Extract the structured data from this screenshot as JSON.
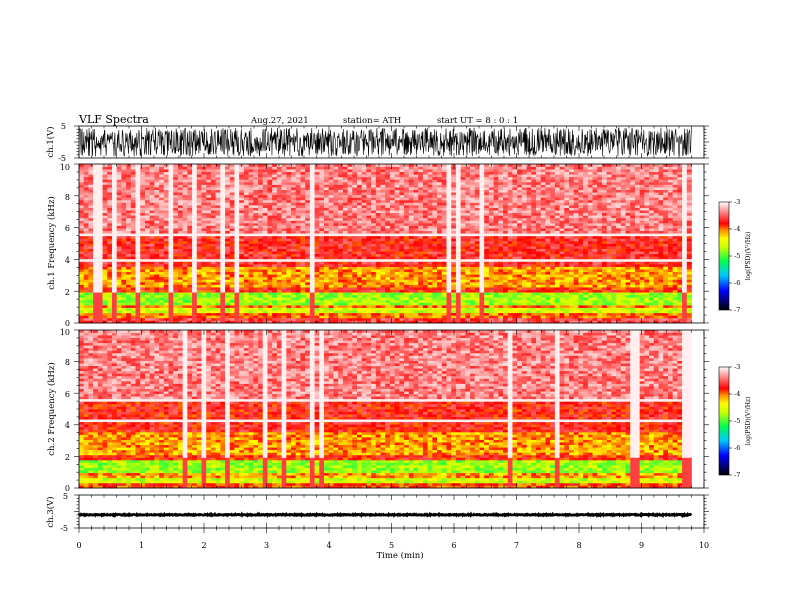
{
  "header": {
    "title": "VLF  Spectra",
    "date": "Aug.27, 2021",
    "station": "station= ATH",
    "start": "start  UT  =   8  : 0  : 1"
  },
  "chart_data": [
    {
      "type": "line",
      "name": "ch1-waveform",
      "ylabel": "ch.1(V)",
      "ylim": [
        -5,
        5
      ],
      "y_tick_labels": [
        "5",
        "-5"
      ],
      "xlim": [
        0,
        10
      ],
      "x_data_end": 9.8,
      "signal": "dense broadband noise filling roughly -4.5 to 4.5 V"
    },
    {
      "type": "heatmap",
      "name": "ch1-spectrogram",
      "ylabel": "ch.1  Frequency  (kHz)",
      "ylim": [
        0,
        10
      ],
      "y_tick_labels": [
        "0",
        "2",
        "4",
        "6",
        "8",
        "10"
      ],
      "xlim": [
        0,
        10
      ],
      "x_data_end": 9.8,
      "colorbar": {
        "label": "log(PSD)(V²/Hz)",
        "range": [
          -7,
          -3
        ],
        "tick_labels": [
          "-3",
          "-4",
          "-5",
          "-6",
          "-7"
        ]
      },
      "bands": [
        {
          "f_range": [
            5.5,
            10
          ],
          "level": -3.4
        },
        {
          "f_range": [
            3.6,
            5.5
          ],
          "level": -3.7
        },
        {
          "f_range": [
            2.3,
            3.6
          ],
          "level": -4.1
        },
        {
          "f_range": [
            1.9,
            2.3
          ],
          "level": -3.8
        },
        {
          "f_range": [
            1.2,
            1.9
          ],
          "level": -4.8
        },
        {
          "f_range": [
            0.9,
            1.2
          ],
          "level": -4.0
        },
        {
          "f_range": [
            0.6,
            0.9
          ],
          "level": -4.6
        },
        {
          "f_range": [
            0.3,
            0.6
          ],
          "level": -4.0
        },
        {
          "f_range": [
            0.0,
            0.3
          ],
          "level": -3.6
        }
      ],
      "white_gap_freqs": [
        5.6,
        4.0
      ]
    },
    {
      "type": "heatmap",
      "name": "ch2-spectrogram",
      "ylabel": "ch.2  Frequency  (kHz)",
      "ylim": [
        0,
        10
      ],
      "y_tick_labels": [
        "0",
        "2",
        "4",
        "6",
        "8",
        "10"
      ],
      "xlim": [
        0,
        10
      ],
      "x_data_end": 9.8,
      "colorbar": {
        "label": "log(PSD)(V²/Hz)",
        "range": [
          -7,
          -3
        ],
        "tick_labels": [
          "-3",
          "-4",
          "-5",
          "-6",
          "-7"
        ]
      },
      "bands": [
        {
          "f_range": [
            5.6,
            10
          ],
          "level": -3.4
        },
        {
          "f_range": [
            3.6,
            5.6
          ],
          "level": -3.75
        },
        {
          "f_range": [
            2.1,
            3.6
          ],
          "level": -4.1
        },
        {
          "f_range": [
            1.7,
            2.1
          ],
          "level": -3.8
        },
        {
          "f_range": [
            1.0,
            1.7
          ],
          "level": -4.8
        },
        {
          "f_range": [
            0.7,
            1.0
          ],
          "level": -4.1
        },
        {
          "f_range": [
            0.3,
            0.7
          ],
          "level": -4.6
        },
        {
          "f_range": [
            0.0,
            0.3
          ],
          "level": -3.9
        }
      ],
      "white_gap_freqs": [
        5.6,
        4.3
      ]
    },
    {
      "type": "line",
      "name": "ch3-waveform",
      "ylabel": "ch.3(V)",
      "ylim": [
        -5,
        5
      ],
      "y_tick_labels": [
        "5",
        "-5"
      ],
      "xlim": [
        0,
        10
      ],
      "x_data_end": 9.8,
      "signal": "flat trace near -1 V"
    }
  ],
  "x_axis": {
    "label": "Time  (min)",
    "tick_labels": [
      "0",
      "1",
      "2",
      "3",
      "4",
      "5",
      "6",
      "7",
      "8",
      "9",
      "10"
    ]
  }
}
